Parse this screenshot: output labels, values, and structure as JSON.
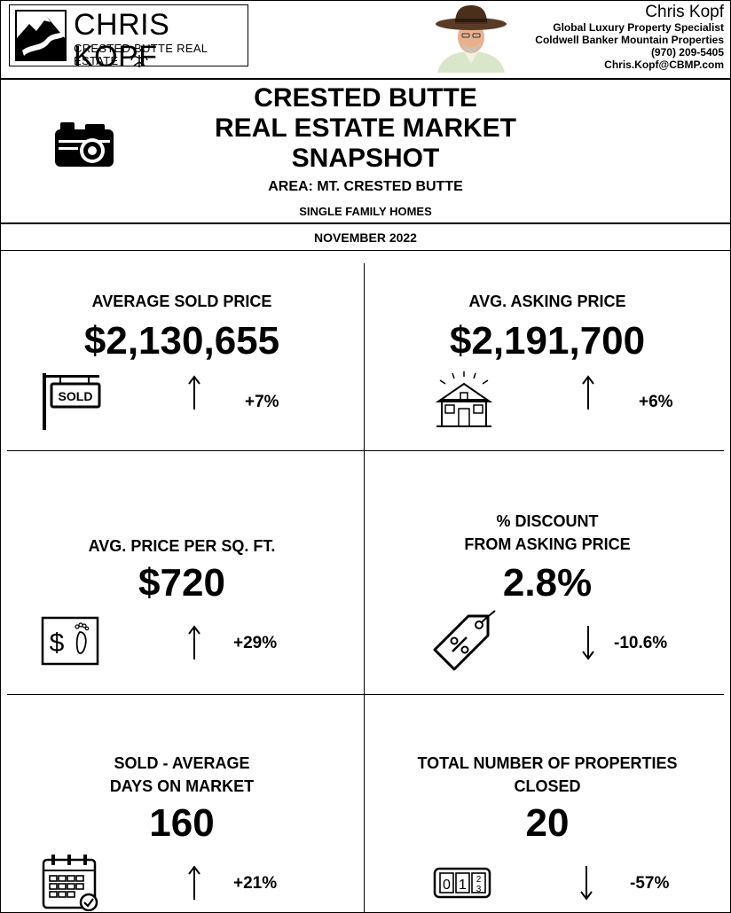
{
  "logo": {
    "name": "CHRIS KOPF",
    "subtitle": "CRESTED BUTTE REAL ESTATE"
  },
  "agent": {
    "name": "Chris Kopf",
    "title": "Global Luxury Property Specialist",
    "company": "Coldwell Banker Mountain Properties",
    "phone": "(970) 209-5405",
    "email": "Chris.Kopf@CBMP.com"
  },
  "report": {
    "title_line1": "CRESTED BUTTE",
    "title_line2": "REAL ESTATE MARKET",
    "title_line3": "SNAPSHOT",
    "area": "AREA:  MT. CRESTED BUTTE",
    "property_type": "SINGLE FAMILY HOMES",
    "month": "NOVEMBER 2022"
  },
  "metrics": {
    "avg_sold_price": {
      "label": "AVERAGE SOLD PRICE",
      "value": "$2,130,655",
      "change": "+7%",
      "direction": "up",
      "icon": "sold-sign-icon"
    },
    "avg_asking_price": {
      "label": "AVG. ASKING PRICE",
      "value": "$2,191,700",
      "change": "+6%",
      "direction": "up",
      "icon": "house-icon"
    },
    "price_per_sqft": {
      "label": "AVG. PRICE PER SQ. FT.",
      "value": "$720",
      "change": "+29%",
      "direction": "up",
      "icon": "dollar-footprint-icon"
    },
    "discount": {
      "label_line1": "% DISCOUNT",
      "label_line2": "FROM ASKING PRICE",
      "value": "2.8%",
      "change": "-10.6%",
      "direction": "down",
      "icon": "percent-tag-icon"
    },
    "days_on_market": {
      "label_line1": "SOLD - AVERAGE",
      "label_line2": "DAYS ON MARKET",
      "value": "160",
      "change": "+21%",
      "direction": "up",
      "icon": "calendar-icon"
    },
    "properties_closed": {
      "label_line1": "TOTAL NUMBER OF PROPERTIES",
      "label_line2": "CLOSED",
      "value": "20",
      "change": "-57%",
      "direction": "down",
      "icon": "counter-icon"
    }
  }
}
